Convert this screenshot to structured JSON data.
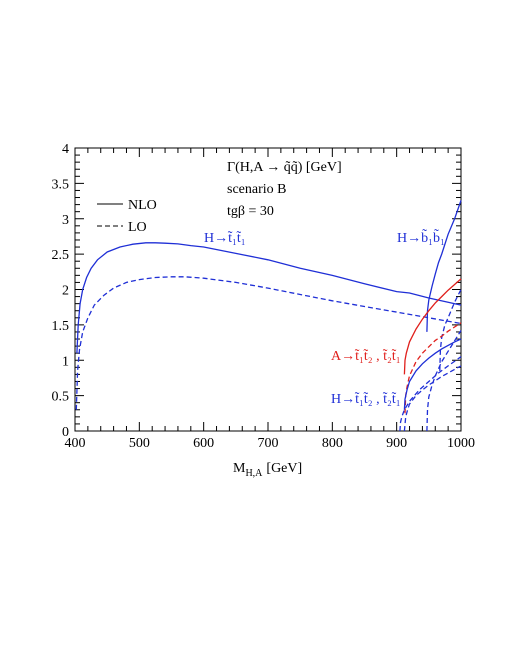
{
  "chart_data": {
    "type": "line",
    "xlabel": "M",
    "xlabel_sub": "H,A",
    "xlabel_unit": "[GeV]",
    "xlim": [
      400,
      1000
    ],
    "ylim": [
      0,
      4
    ],
    "x_ticks": [
      "400",
      "500",
      "600",
      "700",
      "800",
      "900",
      "1000"
    ],
    "y_ticks": [
      "0",
      "0.5",
      "1",
      "1.5",
      "2",
      "2.5",
      "3",
      "3.5",
      "4"
    ],
    "title_lines": [
      "Γ(H,A → q̃q̃) [GeV]",
      "scenario B",
      "tgβ = 30"
    ],
    "legend": {
      "placement": "top-left",
      "entries": [
        {
          "label": "NLO",
          "style": "solid"
        },
        {
          "label": "LO",
          "style": "dashed"
        }
      ]
    },
    "annotations": [
      {
        "text": "H→t̃₁t̃₁",
        "color": "#1f2fd6"
      },
      {
        "text": "H→b̃₁b̃₁",
        "color": "#1f2fd6"
      },
      {
        "text": "A→t̃₁t̃₂ , t̃₂t̃₁",
        "color": "#e0201c"
      },
      {
        "text": "H→t̃₁t̃₂ , t̃₂t̃₁",
        "color": "#1f2fd6"
      }
    ],
    "series": [
      {
        "process": "H-t1t1",
        "order": "NLO",
        "color": "#1f2fd6",
        "dash": false,
        "x": [
          403,
          405,
          408,
          412,
          418,
          425,
          435,
          450,
          470,
          490,
          510,
          525,
          540,
          560,
          580,
          600,
          650,
          700,
          750,
          800,
          850,
          900,
          920,
          950,
          980,
          1000
        ],
        "y": [
          1.1,
          1.5,
          1.8,
          2.0,
          2.17,
          2.3,
          2.42,
          2.53,
          2.6,
          2.64,
          2.66,
          2.66,
          2.655,
          2.645,
          2.62,
          2.6,
          2.51,
          2.42,
          2.3,
          2.2,
          2.08,
          1.97,
          1.95,
          1.88,
          1.82,
          1.78
        ]
      },
      {
        "process": "H-t1t1",
        "order": "LO",
        "color": "#1f2fd6",
        "dash": true,
        "x": [
          402,
          404,
          407,
          412,
          420,
          430,
          445,
          460,
          480,
          500,
          525,
          550,
          570,
          600,
          650,
          700,
          750,
          800,
          850,
          900,
          950,
          1000
        ],
        "y": [
          0.3,
          0.85,
          1.15,
          1.4,
          1.6,
          1.78,
          1.92,
          2.02,
          2.1,
          2.14,
          2.17,
          2.18,
          2.18,
          2.16,
          2.1,
          2.02,
          1.93,
          1.84,
          1.76,
          1.68,
          1.6,
          1.52
        ]
      },
      {
        "process": "H-b1b1",
        "order": "NLO",
        "color": "#1f2fd6",
        "dash": false,
        "x": [
          947,
          948,
          950,
          955,
          960,
          965,
          970,
          980,
          990,
          1000
        ],
        "y": [
          1.4,
          1.7,
          1.85,
          2.05,
          2.22,
          2.38,
          2.5,
          2.78,
          3.0,
          3.26
        ]
      },
      {
        "process": "H-b1b1",
        "order": "LO",
        "color": "#1f2fd6",
        "dash": true,
        "x": [
          967,
          968,
          970,
          975,
          980,
          990,
          1000
        ],
        "y": [
          0.85,
          1.15,
          1.32,
          1.5,
          1.6,
          1.82,
          2.0
        ]
      },
      {
        "process": "A-t1t2",
        "order": "NLO",
        "color": "#e0201c",
        "dash": false,
        "x": [
          912,
          913,
          915,
          920,
          930,
          940,
          950,
          960,
          970,
          980,
          990,
          1000
        ],
        "y": [
          0.8,
          1.0,
          1.1,
          1.26,
          1.44,
          1.58,
          1.7,
          1.81,
          1.9,
          1.99,
          2.07,
          2.15
        ]
      },
      {
        "process": "A-t1t2",
        "order": "LO",
        "color": "#e0201c",
        "dash": true,
        "x": [
          913,
          914,
          916,
          920,
          930,
          940,
          950,
          960,
          970,
          980,
          990,
          1000
        ],
        "y": [
          0.25,
          0.5,
          0.62,
          0.78,
          0.98,
          1.1,
          1.19,
          1.28,
          1.34,
          1.41,
          1.47,
          1.53
        ]
      },
      {
        "process": "H-t1t2",
        "order": "NLO",
        "color": "#1f2fd6",
        "dash": false,
        "x": [
          912,
          913,
          916,
          920,
          930,
          940,
          950,
          960,
          970,
          980,
          990,
          1000
        ],
        "y": [
          0.3,
          0.45,
          0.58,
          0.7,
          0.85,
          0.95,
          1.03,
          1.1,
          1.16,
          1.21,
          1.26,
          1.3
        ]
      },
      {
        "process": "H-t1t2",
        "order": "LO",
        "color": "#1f2fd6",
        "dash": true,
        "x": [
          912,
          914,
          917,
          920,
          930,
          940,
          950,
          960,
          970,
          980,
          990,
          1000
        ],
        "y": [
          0.0,
          0.2,
          0.3,
          0.38,
          0.5,
          0.58,
          0.65,
          0.71,
          0.77,
          0.82,
          0.87,
          0.92
        ]
      },
      {
        "process": "H-t1t2-low",
        "order": "LO",
        "color": "#1f2fd6",
        "dash": true,
        "x": [
          905,
          906,
          908,
          912,
          920,
          935,
          950,
          965,
          980,
          1000
        ],
        "y": [
          0.0,
          0.12,
          0.2,
          0.3,
          0.42,
          0.58,
          0.7,
          0.82,
          0.92,
          1.05
        ]
      },
      {
        "process": "H-b1b1-low",
        "order": "LO",
        "color": "#1f2fd6",
        "dash": true,
        "x": [
          947,
          948,
          950,
          955,
          960,
          970,
          985,
          1000
        ],
        "y": [
          0.0,
          0.3,
          0.48,
          0.65,
          0.78,
          0.98,
          1.2,
          1.42
        ]
      }
    ]
  }
}
